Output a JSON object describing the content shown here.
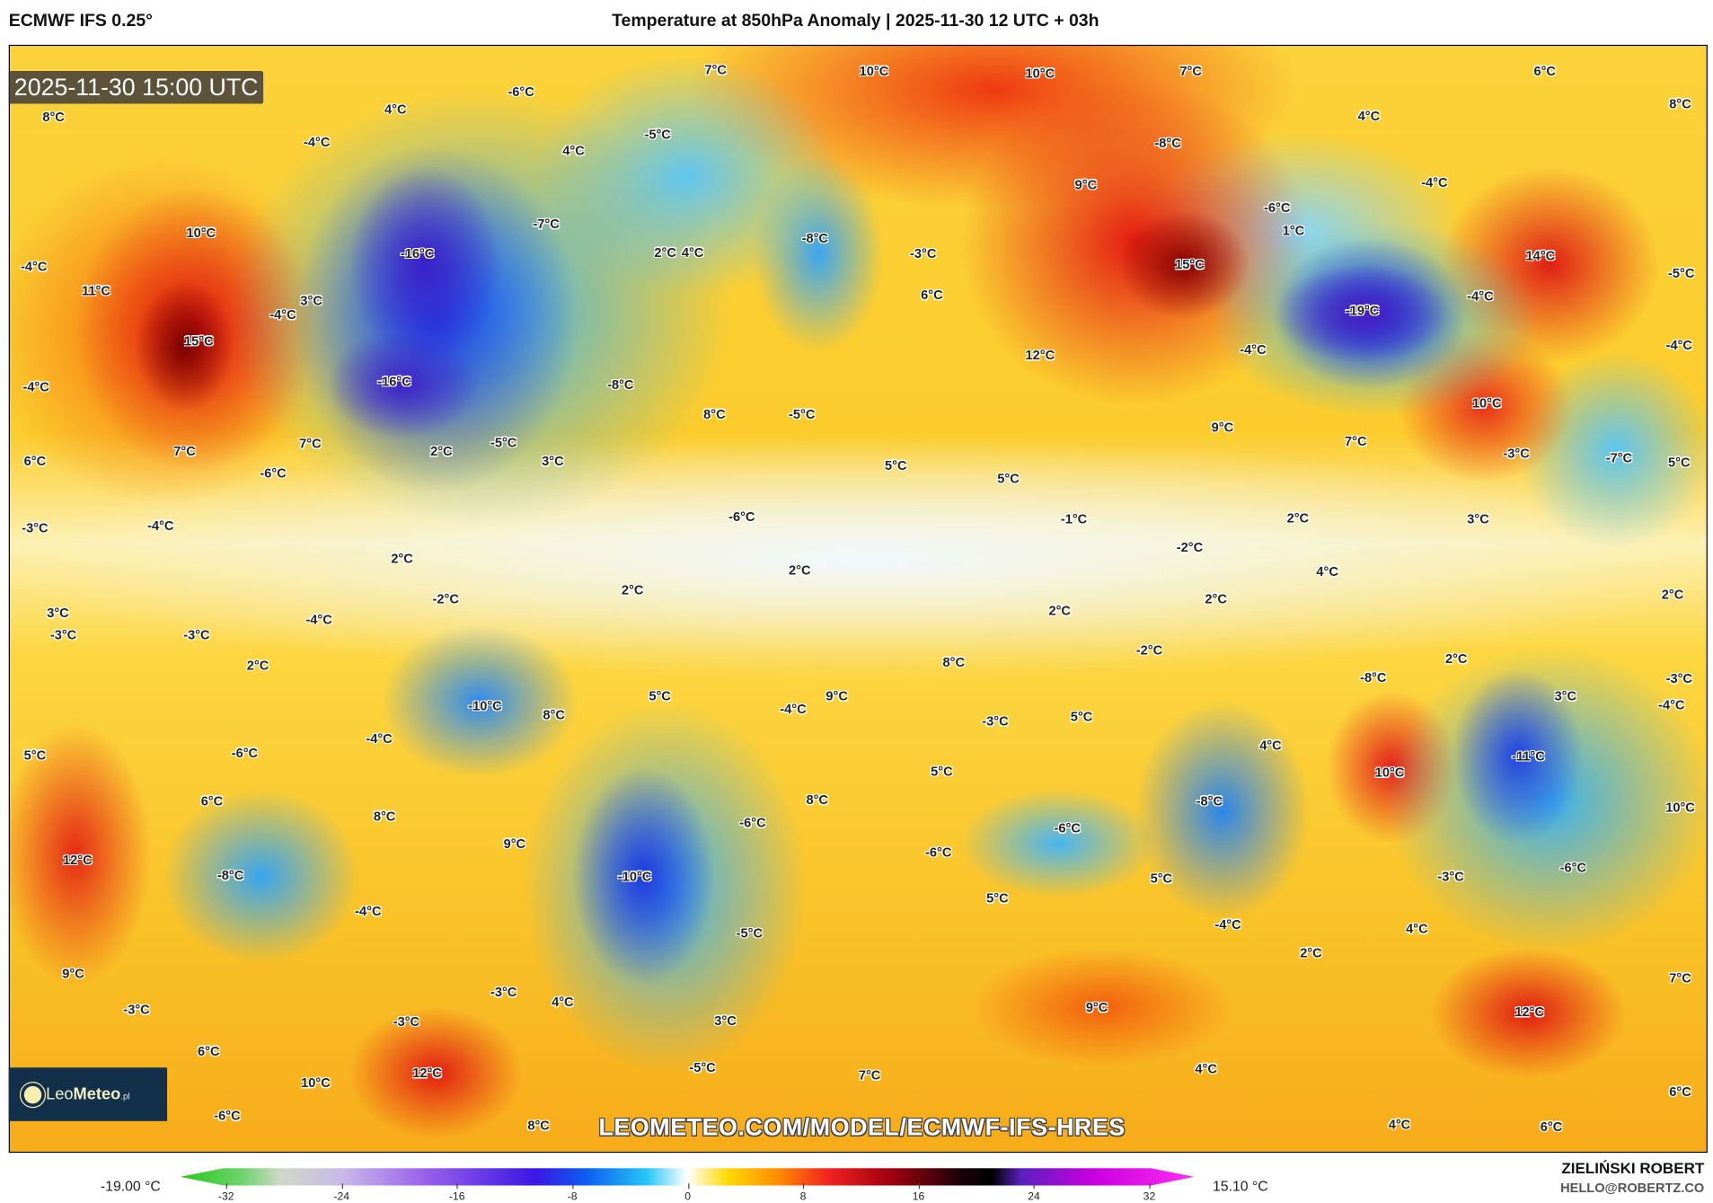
{
  "header": {
    "model": "ECMWF IFS 0.25°",
    "title": "Temperature at 850hPa Anomaly | 2025-11-30 12 UTC + 03h"
  },
  "map": {
    "timestamp": "2025-11-30 15:00 UTC",
    "url": "LEOMETEO.COM/MODEL/ECMWF-IFS-HRES",
    "logo": "LeoMeteo.pl",
    "labels": [
      "7°C",
      "10°C",
      "10°C",
      "7°C",
      "6°C",
      "8°C",
      "8°C",
      "-6°C",
      "4°C",
      "-4°C",
      "-5°C",
      "4°C",
      "4°C",
      "-8°C",
      "-4°C",
      "9°C",
      "-6°C",
      "1°C",
      "-7°C",
      "-8°C",
      "-16°C",
      "2°C",
      "4°C",
      "-3°C",
      "10°C",
      "-4°C",
      "11°C",
      "3°C",
      "-4°C",
      "15°C",
      "15°C",
      "14°C",
      "-5°C",
      "-19°C",
      "-4°C",
      "6°C",
      "12°C",
      "-4°C",
      "-4°C",
      "-16°C",
      "-8°C",
      "-4°C",
      "8°C",
      "-5°C",
      "9°C",
      "10°C",
      "7°C",
      "7°C",
      "7°C",
      "2°C",
      "-5°C",
      "3°C",
      "-6°C",
      "6°C",
      "5°C",
      "5°C",
      "-3°C",
      "-7°C",
      "5°C",
      "-6°C",
      "-4°C",
      "-3°C",
      "-1°C",
      "2°C",
      "3°C",
      "-2°C",
      "2°C",
      "2°C",
      "4°C",
      "2°C",
      "-2°C",
      "2°C",
      "2°C",
      "3°C",
      "-3°C",
      "-4°C",
      "-3°C",
      "2°C",
      "-2°C",
      "2°C",
      "8°C",
      "-8°C",
      "2°C",
      "-3°C",
      "3°C",
      "-4°C",
      "9°C",
      "5°C",
      "-10°C",
      "8°C",
      "-4°C",
      "-3°C",
      "5°C",
      "-4°C",
      "-6°C",
      "5°C",
      "4°C",
      "10°C",
      "-11°C",
      "5°C",
      "6°C",
      "8°C",
      "-6°C",
      "8°C",
      "-8°C",
      "10°C",
      "-6°C",
      "-6°C",
      "9°C",
      "12°C",
      "-8°C",
      "-10°C",
      "5°C",
      "-3°C",
      "-6°C",
      "-4°C",
      "5°C",
      "-4°C",
      "4°C",
      "-5°C",
      "2°C",
      "9°C",
      "7°C",
      "-3°C",
      "4°C",
      "-3°C",
      "9°C",
      "12°C",
      "3°C",
      "-3°C",
      "6°C",
      "7°C",
      "4°C",
      "12°C",
      "-5°C",
      "10°C",
      "6°C",
      "-6°C",
      "8°C",
      "4°C",
      "6°C"
    ]
  },
  "colorbar": {
    "min_label": "-19.00 °C",
    "max_label": "15.10 °C",
    "ticks": [
      "-32",
      "-24",
      "-16",
      "-8",
      "0",
      "8",
      "16",
      "24",
      "32"
    ]
  },
  "credits": {
    "author": "ZIELIŃSKI ROBERT",
    "email": "HELLO@ROBERTZ.CO"
  }
}
